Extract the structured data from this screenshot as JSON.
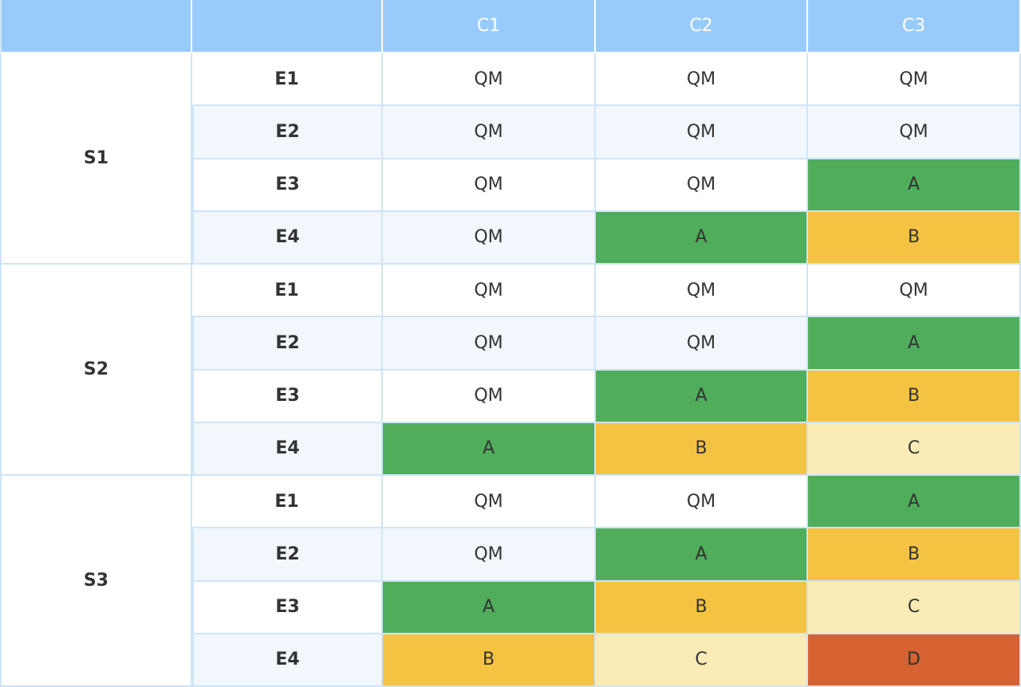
{
  "header": {
    "corner_1": "",
    "corner_2": "",
    "columns": [
      "C1",
      "C2",
      "C3"
    ]
  },
  "groups": [
    {
      "label": "S1",
      "rows": [
        {
          "event": "E1",
          "cells": [
            "QM",
            "QM",
            "QM"
          ]
        },
        {
          "event": "E2",
          "cells": [
            "QM",
            "QM",
            "QM"
          ]
        },
        {
          "event": "E3",
          "cells": [
            "QM",
            "QM",
            "A"
          ]
        },
        {
          "event": "E4",
          "cells": [
            "QM",
            "A",
            "B"
          ]
        }
      ]
    },
    {
      "label": "S2",
      "rows": [
        {
          "event": "E1",
          "cells": [
            "QM",
            "QM",
            "QM"
          ]
        },
        {
          "event": "E2",
          "cells": [
            "QM",
            "QM",
            "A"
          ]
        },
        {
          "event": "E3",
          "cells": [
            "QM",
            "A",
            "B"
          ]
        },
        {
          "event": "E4",
          "cells": [
            "A",
            "B",
            "C"
          ]
        }
      ]
    },
    {
      "label": "S3",
      "rows": [
        {
          "event": "E1",
          "cells": [
            "QM",
            "QM",
            "A"
          ]
        },
        {
          "event": "E2",
          "cells": [
            "QM",
            "A",
            "B"
          ]
        },
        {
          "event": "E3",
          "cells": [
            "A",
            "B",
            "C"
          ]
        },
        {
          "event": "E4",
          "cells": [
            "B",
            "C",
            "D"
          ]
        }
      ]
    }
  ],
  "colors": {
    "header_bg": "#99cbfa",
    "grid_line": "#cfe4f7",
    "row_stripe": "#f1f7fc",
    "level_A": "#4fad5b",
    "level_B": "#f5c342",
    "level_C": "#faecb4",
    "level_D": "#d66131"
  }
}
